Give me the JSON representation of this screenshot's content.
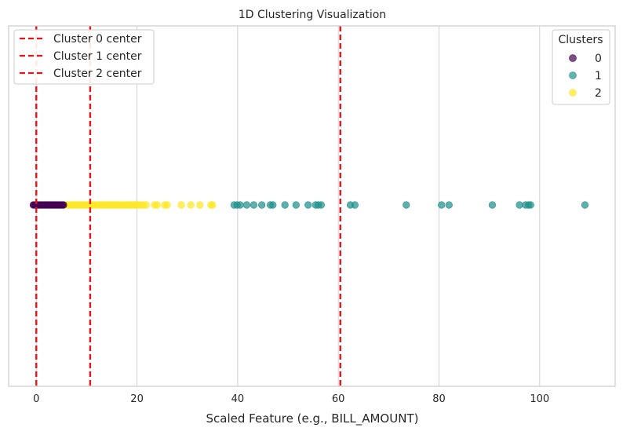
{
  "chart_data": {
    "type": "scatter",
    "title": "1D Clustering Visualization",
    "xlabel": "Scaled Feature (e.g., BILL_AMOUNT)",
    "ylabel": "",
    "xlim": [
      -5.5,
      115
    ],
    "x_ticks": [
      0,
      20,
      40,
      60,
      80,
      100
    ],
    "grid": "vertical",
    "legend_centers": {
      "placement": "top-left",
      "labels": [
        "Cluster 0 center",
        "Cluster 1 center",
        "Cluster 2 center"
      ]
    },
    "legend_clusters": {
      "placement": "top-right",
      "title": "Clusters",
      "labels": [
        "0",
        "1",
        "2"
      ]
    },
    "colors": {
      "cluster0": "#440154",
      "cluster1": "#21918c",
      "cluster2": "#fde725",
      "center_line": "#e8141a",
      "grid": "#d0d0d0",
      "axes_edge": "#cccccc"
    },
    "centers": [
      {
        "label": "Cluster 0 center",
        "x": 0.0
      },
      {
        "label": "Cluster 1 center",
        "x": 60.4
      },
      {
        "label": "Cluster 2 center",
        "x": 10.7
      }
    ],
    "series": [
      {
        "name": "0",
        "x": [
          -0.6,
          -0.4,
          -0.2,
          0.0,
          0.2,
          0.4,
          0.6,
          0.8,
          1.0,
          1.2,
          1.4,
          1.6,
          1.8,
          2.0,
          2.2,
          2.4,
          2.6,
          2.8,
          3.0,
          3.2,
          3.4,
          3.6,
          3.8,
          4.0,
          4.2,
          4.4,
          4.6,
          4.8,
          5.0,
          5.2,
          5.4
        ]
      },
      {
        "name": "1",
        "x": [
          39.3,
          39.9,
          40.5,
          41.8,
          43.2,
          44.8,
          46.5,
          47.0,
          49.4,
          51.6,
          54.0,
          55.5,
          56.0,
          56.6,
          62.4,
          63.3,
          73.5,
          80.5,
          82.0,
          90.6,
          96.0,
          97.2,
          97.8,
          98.2,
          109.0
        ]
      },
      {
        "name": "2",
        "x": [
          5.8,
          6.2,
          6.6,
          7.0,
          7.4,
          7.8,
          8.2,
          8.6,
          9.0,
          9.4,
          9.8,
          10.2,
          10.6,
          11.0,
          11.4,
          11.8,
          12.2,
          12.6,
          13.0,
          13.4,
          13.8,
          14.2,
          14.6,
          15.0,
          15.4,
          15.8,
          16.2,
          16.6,
          17.0,
          17.4,
          17.8,
          18.2,
          18.6,
          19.0,
          19.4,
          19.8,
          20.2,
          20.7,
          21.2,
          21.8,
          23.5,
          24.0,
          25.5,
          26.0,
          28.8,
          30.7,
          32.5,
          34.7,
          35.0
        ]
      }
    ]
  }
}
